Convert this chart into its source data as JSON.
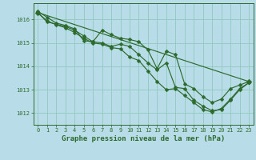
{
  "series": [
    {
      "x": [
        0,
        1,
        2,
        3,
        4,
        5,
        6,
        7,
        8,
        9,
        10,
        11,
        12,
        13,
        14,
        15,
        16,
        17,
        18,
        19,
        20,
        21,
        22,
        23
      ],
      "y": [
        1016.35,
        1016.1,
        1015.85,
        1015.75,
        1015.6,
        1015.1,
        1015.05,
        1015.55,
        1015.35,
        1015.2,
        1015.15,
        1015.05,
        1014.7,
        1013.9,
        1014.65,
        1014.5,
        1013.25,
        1013.05,
        1012.7,
        1012.45,
        1012.6,
        1013.05,
        1013.2,
        1013.35
      ]
    },
    {
      "x": [
        0,
        1,
        2,
        3,
        4,
        5,
        6,
        7,
        8,
        9,
        10,
        11,
        12,
        13,
        14,
        15,
        16,
        17,
        18,
        19,
        20,
        21,
        22,
        23
      ],
      "y": [
        1016.3,
        1015.9,
        1015.8,
        1015.7,
        1015.55,
        1015.3,
        1015.05,
        1015.0,
        1014.85,
        1014.95,
        1014.85,
        1014.5,
        1014.15,
        1013.85,
        1014.15,
        1013.1,
        1013.05,
        1012.55,
        1012.3,
        1012.1,
        1012.15,
        1012.55,
        1013.0,
        1013.3
      ]
    },
    {
      "x": [
        0,
        1,
        2,
        3,
        4,
        5,
        6,
        7,
        8,
        9,
        10,
        11,
        12,
        13,
        14,
        15,
        16,
        17,
        18,
        19,
        20,
        21,
        22,
        23
      ],
      "y": [
        1016.28,
        1015.95,
        1015.78,
        1015.65,
        1015.45,
        1015.2,
        1015.0,
        1014.95,
        1014.8,
        1014.75,
        1014.4,
        1014.25,
        1013.8,
        1013.35,
        1013.0,
        1013.05,
        1012.75,
        1012.45,
        1012.15,
        1012.05,
        1012.2,
        1012.6,
        1013.05,
        1013.3
      ]
    },
    {
      "x": [
        0,
        23
      ],
      "y": [
        1016.3,
        1013.35
      ]
    }
  ],
  "line_color": "#2d6a2d",
  "marker": "D",
  "marker_sizes": [
    2.5,
    2.5,
    2.5,
    3.5
  ],
  "linewidth": 0.85,
  "bg_color": "#b8dde8",
  "grid_color": "#90c8bc",
  "title": "Graphe pression niveau de la mer (hPa)",
  "yticks": [
    1012,
    1013,
    1014,
    1015,
    1016
  ],
  "xlim": [
    -0.5,
    23.5
  ],
  "ylim": [
    1011.5,
    1016.7
  ],
  "title_fontsize": 6.5,
  "tick_fontsize": 5.0
}
